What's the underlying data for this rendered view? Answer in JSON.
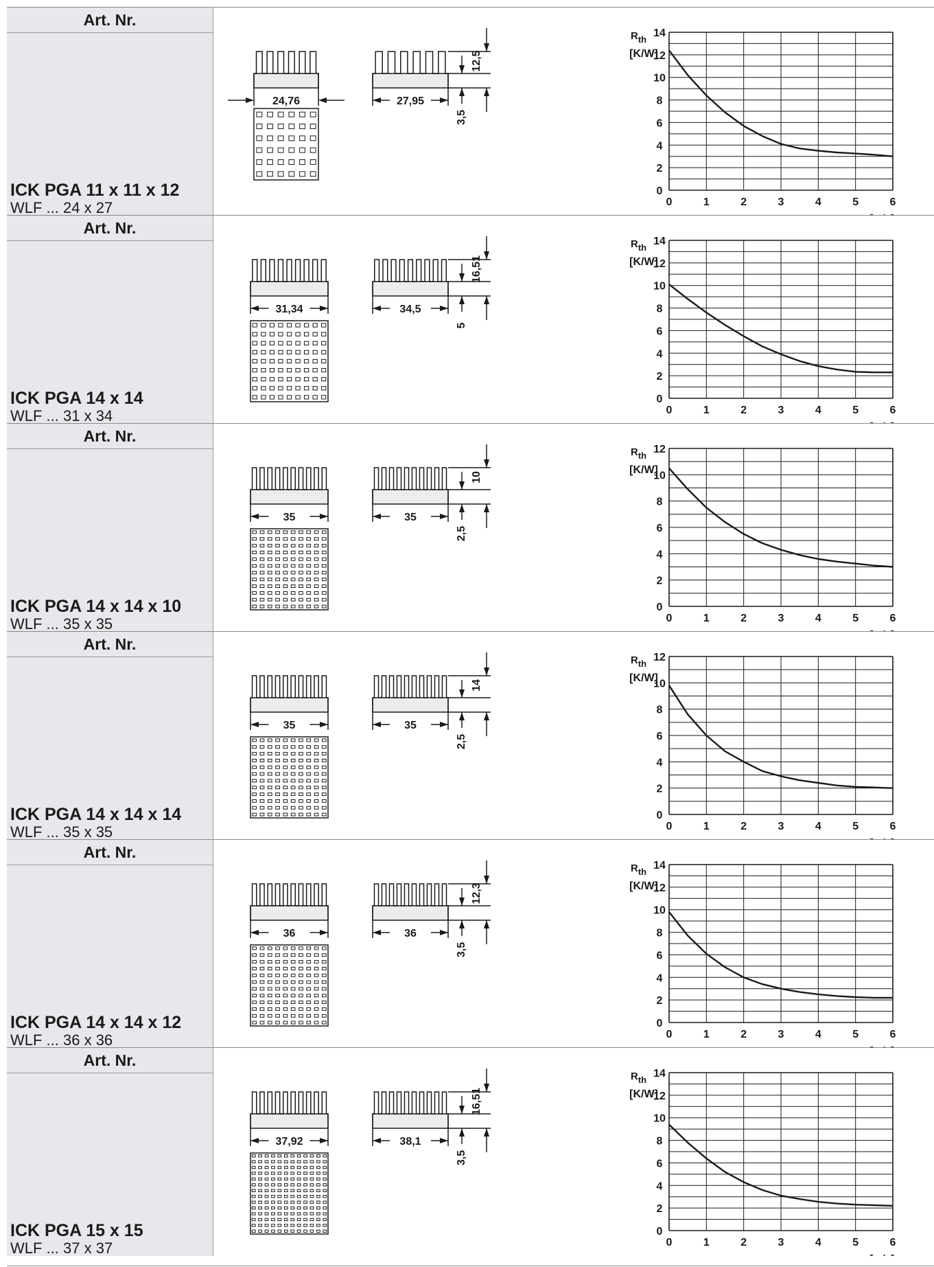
{
  "labels": {
    "art_nr": "Art. Nr.",
    "rth_main": "R",
    "rth_sub": "th",
    "unit": "[K/W]",
    "xlabel": "v [m/s]"
  },
  "products": [
    {
      "name": "ICK PGA 11 x 11 x 12",
      "wlf": "WLF ... 24 x 27",
      "dim_front_width": "24,76",
      "dim_side_width": "27,95",
      "dim_height": "12,5",
      "dim_base": "3,5",
      "front_fins": 6,
      "side_fins": 6,
      "top_cols": 6,
      "top_rows": 6,
      "front_style": "outside",
      "chart_data": {
        "type": "line",
        "xlabel": "v [m/s]",
        "ylabel": "Rth [K/W]",
        "xlim": [
          0,
          6
        ],
        "ylim": [
          0,
          14
        ],
        "x_ticks": [
          0,
          1,
          2,
          3,
          4,
          5,
          6
        ],
        "y_ticks": [
          0,
          2,
          4,
          6,
          8,
          10,
          12,
          14
        ],
        "grid": true,
        "x": [
          0,
          0.5,
          1,
          1.5,
          2,
          2.5,
          3,
          3.5,
          4,
          4.5,
          5,
          5.5,
          6
        ],
        "y": [
          12.4,
          10.2,
          8.4,
          6.9,
          5.7,
          4.8,
          4.1,
          3.7,
          3.5,
          3.35,
          3.25,
          3.15,
          3.0
        ]
      }
    },
    {
      "name": "ICK PGA 14 x 14",
      "wlf": "WLF ... 31 x 34",
      "dim_front_width": "31,34",
      "dim_side_width": "34,5",
      "dim_height": "16,51",
      "dim_base": "5",
      "front_fins": 9,
      "side_fins": 9,
      "top_cols": 9,
      "top_rows": 9,
      "front_style": "inside",
      "chart_data": {
        "type": "line",
        "xlabel": "v [m/s]",
        "ylabel": "Rth [K/W]",
        "xlim": [
          0,
          6
        ],
        "ylim": [
          0,
          14
        ],
        "x_ticks": [
          0,
          1,
          2,
          3,
          4,
          5,
          6
        ],
        "y_ticks": [
          0,
          2,
          4,
          6,
          8,
          10,
          12,
          14
        ],
        "grid": true,
        "x": [
          0,
          0.5,
          1,
          1.5,
          2,
          2.5,
          3,
          3.5,
          4,
          4.5,
          5,
          5.5,
          6
        ],
        "y": [
          10.1,
          8.8,
          7.6,
          6.5,
          5.5,
          4.6,
          3.9,
          3.3,
          2.85,
          2.55,
          2.35,
          2.3,
          2.3
        ]
      }
    },
    {
      "name": "ICK PGA 14 x 14 x 10",
      "wlf": "WLF ... 35 x 35",
      "dim_front_width": "35",
      "dim_side_width": "35",
      "dim_height": "10",
      "dim_base": "2,5",
      "front_fins": 10,
      "side_fins": 10,
      "top_cols": 10,
      "top_rows": 12,
      "front_style": "inside",
      "chart_data": {
        "type": "line",
        "xlabel": "v [m/s]",
        "ylabel": "Rth [K/W]",
        "xlim": [
          0,
          6
        ],
        "ylim": [
          0,
          12
        ],
        "x_ticks": [
          0,
          1,
          2,
          3,
          4,
          5,
          6
        ],
        "y_ticks": [
          0,
          2,
          4,
          6,
          8,
          10,
          12
        ],
        "grid": true,
        "x": [
          0,
          0.5,
          1,
          1.5,
          2,
          2.5,
          3,
          3.5,
          4,
          4.5,
          5,
          5.5,
          6
        ],
        "y": [
          10.5,
          8.9,
          7.5,
          6.4,
          5.5,
          4.8,
          4.3,
          3.9,
          3.6,
          3.4,
          3.25,
          3.1,
          3.0
        ]
      }
    },
    {
      "name": "ICK PGA 14 x 14 x 14",
      "wlf": "WLF ... 35 x 35",
      "dim_front_width": "35",
      "dim_side_width": "35",
      "dim_height": "14",
      "dim_base": "2,5",
      "front_fins": 10,
      "side_fins": 10,
      "top_cols": 10,
      "top_rows": 12,
      "front_style": "inside",
      "chart_data": {
        "type": "line",
        "xlabel": "v [m/s]",
        "ylabel": "Rth [K/W]",
        "xlim": [
          0,
          6
        ],
        "ylim": [
          0,
          12
        ],
        "x_ticks": [
          0,
          1,
          2,
          3,
          4,
          5,
          6
        ],
        "y_ticks": [
          0,
          2,
          4,
          6,
          8,
          10,
          12
        ],
        "grid": true,
        "x": [
          0,
          0.5,
          1,
          1.5,
          2,
          2.5,
          3,
          3.5,
          4,
          4.5,
          5,
          5.5,
          6
        ],
        "y": [
          9.8,
          7.6,
          6.0,
          4.8,
          4.0,
          3.3,
          2.9,
          2.6,
          2.4,
          2.2,
          2.1,
          2.05,
          2.0
        ]
      }
    },
    {
      "name": "ICK PGA 14 x 14 x 12",
      "wlf": "WLF ... 36 x 36",
      "dim_front_width": "36",
      "dim_side_width": "36",
      "dim_height": "12,3",
      "dim_base": "3,5",
      "front_fins": 10,
      "side_fins": 10,
      "top_cols": 10,
      "top_rows": 12,
      "front_style": "inside",
      "chart_data": {
        "type": "line",
        "xlabel": "v [m/s]",
        "ylabel": "Rth [K/W]",
        "xlim": [
          0,
          6
        ],
        "ylim": [
          0,
          14
        ],
        "x_ticks": [
          0,
          1,
          2,
          3,
          4,
          5,
          6
        ],
        "y_ticks": [
          0,
          2,
          4,
          6,
          8,
          10,
          12,
          14
        ],
        "grid": true,
        "x": [
          0,
          0.5,
          1,
          1.5,
          2,
          2.5,
          3,
          3.5,
          4,
          4.5,
          5,
          5.5,
          6
        ],
        "y": [
          9.8,
          7.7,
          6.1,
          4.9,
          4.0,
          3.4,
          3.0,
          2.7,
          2.5,
          2.35,
          2.25,
          2.2,
          2.2
        ]
      }
    },
    {
      "name": "ICK PGA 15 x 15",
      "wlf": "WLF ... 37 x 37",
      "dim_front_width": "37,92",
      "dim_side_width": "38,1",
      "dim_height": "16,51",
      "dim_base": "3,5",
      "front_fins": 10,
      "side_fins": 10,
      "top_cols": 12,
      "top_rows": 14,
      "front_style": "inside",
      "chart_data": {
        "type": "line",
        "xlabel": "v [m/s]",
        "ylabel": "Rth [K/W]",
        "xlim": [
          0,
          6
        ],
        "ylim": [
          0,
          14
        ],
        "x_ticks": [
          0,
          1,
          2,
          3,
          4,
          5,
          6
        ],
        "y_ticks": [
          0,
          2,
          4,
          6,
          8,
          10,
          12,
          14
        ],
        "grid": true,
        "x": [
          0,
          0.5,
          1,
          1.5,
          2,
          2.5,
          3,
          3.5,
          4,
          4.5,
          5,
          5.5,
          6
        ],
        "y": [
          9.4,
          7.8,
          6.4,
          5.2,
          4.3,
          3.6,
          3.1,
          2.8,
          2.55,
          2.4,
          2.3,
          2.25,
          2.2
        ]
      }
    }
  ]
}
